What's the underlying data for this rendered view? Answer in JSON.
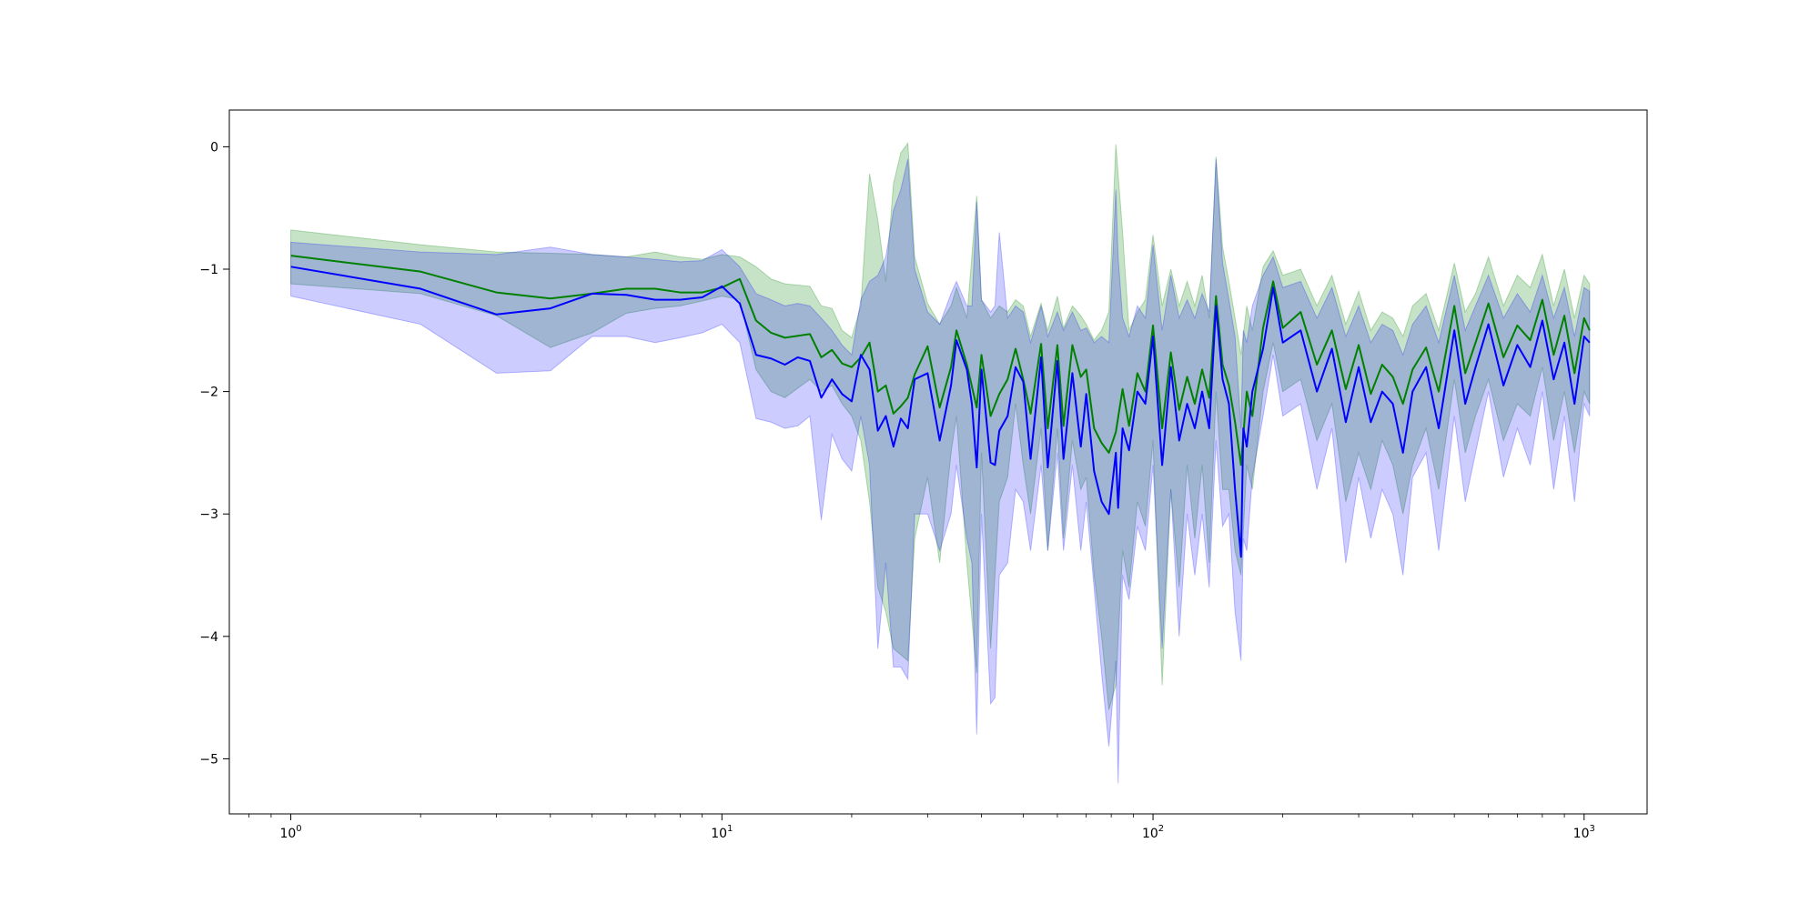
{
  "chart_data": {
    "type": "line",
    "title": "",
    "xlabel": "",
    "ylabel": "",
    "xscale": "log",
    "xlim": [
      0.72,
      1400
    ],
    "ylim": [
      -5.45,
      0.3
    ],
    "grid": false,
    "legend": "none",
    "x_ticks": [
      {
        "value": 1,
        "base": "10",
        "exp": "0"
      },
      {
        "value": 10,
        "base": "10",
        "exp": "1"
      },
      {
        "value": 100,
        "base": "10",
        "exp": "2"
      },
      {
        "value": 1000,
        "base": "10",
        "exp": "3"
      }
    ],
    "y_ticks": [
      {
        "value": 0,
        "label": "0"
      },
      {
        "value": -1,
        "label": "−1"
      },
      {
        "value": -2,
        "label": "−2"
      },
      {
        "value": -3,
        "label": "−3"
      },
      {
        "value": -4,
        "label": "−4"
      },
      {
        "value": -5,
        "label": "−5"
      }
    ],
    "series": [
      {
        "color": "#008000",
        "band_color": "#008000",
        "band_opacity": 0.22,
        "x": [
          1,
          2,
          3,
          4,
          5,
          6,
          7,
          8,
          9,
          10,
          11,
          12,
          13,
          14,
          16,
          17,
          18,
          19,
          20,
          21,
          22,
          23,
          24,
          25,
          26,
          27,
          28,
          30,
          32,
          34,
          35,
          37,
          39,
          40,
          42,
          44,
          46,
          48,
          50,
          52,
          55,
          57,
          60,
          62,
          65,
          68,
          70,
          73,
          76,
          79,
          82,
          85,
          88,
          92,
          96,
          100,
          105,
          110,
          115,
          120,
          125,
          130,
          135,
          140,
          145,
          150,
          155,
          160,
          165,
          170,
          180,
          190,
          200,
          220,
          240,
          260,
          280,
          300,
          320,
          340,
          360,
          380,
          400,
          430,
          460,
          500,
          530,
          560,
          600,
          650,
          700,
          750,
          800,
          850,
          900,
          950,
          1000,
          1030
        ],
        "y": [
          -0.89,
          -1.02,
          -1.19,
          -1.24,
          -1.2,
          -1.16,
          -1.16,
          -1.19,
          -1.19,
          -1.15,
          -1.08,
          -1.42,
          -1.52,
          -1.56,
          -1.53,
          -1.72,
          -1.66,
          -1.77,
          -1.8,
          -1.72,
          -1.6,
          -2.0,
          -1.95,
          -2.18,
          -2.12,
          -2.05,
          -1.86,
          -1.63,
          -2.13,
          -1.8,
          -1.5,
          -1.78,
          -2.13,
          -1.7,
          -2.2,
          -2.02,
          -1.9,
          -1.65,
          -1.9,
          -2.18,
          -1.61,
          -2.3,
          -1.62,
          -2.28,
          -1.62,
          -1.88,
          -1.82,
          -2.3,
          -2.42,
          -2.5,
          -2.33,
          -1.98,
          -2.28,
          -1.85,
          -2.0,
          -1.46,
          -2.3,
          -1.68,
          -2.15,
          -1.88,
          -2.1,
          -1.82,
          -2.05,
          -1.22,
          -1.78,
          -1.95,
          -2.25,
          -2.6,
          -2.0,
          -2.2,
          -1.48,
          -1.1,
          -1.48,
          -1.35,
          -1.78,
          -1.5,
          -1.98,
          -1.62,
          -2.02,
          -1.78,
          -1.88,
          -2.1,
          -1.82,
          -1.64,
          -2.0,
          -1.3,
          -1.85,
          -1.6,
          -1.28,
          -1.72,
          -1.46,
          -1.58,
          -1.25,
          -1.7,
          -1.38,
          -1.85,
          -1.4,
          -1.5
        ],
        "lower": [
          -1.12,
          -1.2,
          -1.38,
          -1.64,
          -1.52,
          -1.36,
          -1.32,
          -1.3,
          -1.26,
          -1.22,
          -1.25,
          -1.82,
          -2.0,
          -2.05,
          -1.9,
          -2.0,
          -1.95,
          -2.1,
          -2.2,
          -2.4,
          -2.9,
          -3.6,
          -3.8,
          -4.1,
          -4.15,
          -4.2,
          -3.2,
          -2.7,
          -3.4,
          -2.5,
          -2.2,
          -3.4,
          -4.3,
          -2.5,
          -4.1,
          -2.9,
          -2.7,
          -2.1,
          -2.6,
          -3.0,
          -2.3,
          -3.3,
          -2.3,
          -3.2,
          -2.4,
          -2.8,
          -2.7,
          -3.5,
          -4.0,
          -4.6,
          -4.4,
          -3.3,
          -3.6,
          -2.9,
          -3.1,
          -2.4,
          -4.4,
          -2.8,
          -3.6,
          -2.6,
          -3.2,
          -2.6,
          -3.4,
          -2.0,
          -2.8,
          -2.8,
          -3.3,
          -3.5,
          -2.6,
          -2.8,
          -2.0,
          -1.6,
          -2.0,
          -1.9,
          -2.4,
          -2.1,
          -2.9,
          -2.5,
          -2.8,
          -2.4,
          -2.6,
          -3.0,
          -2.6,
          -2.3,
          -2.8,
          -1.9,
          -2.5,
          -2.2,
          -1.9,
          -2.4,
          -2.1,
          -2.2,
          -1.8,
          -2.4,
          -2.0,
          -2.5,
          -2.0,
          -2.1
        ],
        "upper": [
          -0.68,
          -0.8,
          -0.86,
          -0.87,
          -0.88,
          -0.9,
          -0.86,
          -0.9,
          -0.92,
          -0.88,
          -0.9,
          -0.98,
          -1.08,
          -1.12,
          -1.14,
          -1.3,
          -1.32,
          -1.5,
          -1.56,
          -1.3,
          -0.22,
          -0.6,
          -1.1,
          -0.3,
          -0.05,
          0.03,
          -0.9,
          -1.28,
          -1.45,
          -1.3,
          -1.15,
          -1.4,
          -0.4,
          -1.25,
          -1.4,
          -1.3,
          -1.35,
          -1.25,
          -1.3,
          -1.55,
          -1.28,
          -1.5,
          -1.22,
          -1.48,
          -1.3,
          -1.38,
          -1.45,
          -1.58,
          -1.5,
          -1.35,
          0.02,
          -0.7,
          -1.5,
          -1.35,
          -1.25,
          -0.72,
          -1.3,
          -1.0,
          -1.3,
          -1.1,
          -1.3,
          -1.05,
          -1.4,
          -0.08,
          -0.82,
          -1.1,
          -1.4,
          -1.7,
          -1.3,
          -1.5,
          -0.98,
          -0.85,
          -1.05,
          -1.0,
          -1.3,
          -1.05,
          -1.45,
          -1.18,
          -1.5,
          -1.35,
          -1.4,
          -1.55,
          -1.3,
          -1.2,
          -1.5,
          -0.95,
          -1.35,
          -1.2,
          -0.9,
          -1.3,
          -1.05,
          -1.15,
          -0.88,
          -1.3,
          -1.0,
          -1.4,
          -1.05,
          -1.12
        ]
      },
      {
        "color": "#0000ff",
        "band_color": "#0000ff",
        "band_opacity": 0.2,
        "x": [
          1,
          2,
          3,
          4,
          5,
          6,
          7,
          8,
          9,
          10,
          11,
          12,
          13,
          14,
          15,
          16,
          17,
          18,
          19,
          20,
          21,
          22,
          23,
          24,
          25,
          26,
          27,
          28,
          30,
          32,
          34,
          35,
          37,
          38,
          39,
          40,
          42,
          43,
          44,
          46,
          48,
          50,
          52,
          55,
          57,
          60,
          62,
          65,
          68,
          70,
          73,
          76,
          79,
          82,
          83,
          85,
          88,
          92,
          96,
          100,
          105,
          110,
          115,
          120,
          125,
          130,
          135,
          140,
          145,
          150,
          155,
          160,
          162,
          165,
          170,
          180,
          190,
          200,
          220,
          240,
          260,
          280,
          300,
          320,
          340,
          360,
          380,
          400,
          430,
          460,
          500,
          530,
          560,
          600,
          650,
          700,
          750,
          800,
          850,
          900,
          950,
          1000,
          1030
        ],
        "y": [
          -0.98,
          -1.16,
          -1.37,
          -1.32,
          -1.2,
          -1.21,
          -1.25,
          -1.25,
          -1.23,
          -1.14,
          -1.28,
          -1.7,
          -1.73,
          -1.78,
          -1.72,
          -1.75,
          -2.05,
          -1.9,
          -2.02,
          -2.08,
          -1.7,
          -1.82,
          -2.32,
          -2.2,
          -2.45,
          -2.22,
          -2.3,
          -1.9,
          -1.85,
          -2.4,
          -1.95,
          -1.58,
          -1.82,
          -2.1,
          -2.62,
          -1.82,
          -2.58,
          -2.6,
          -2.32,
          -2.2,
          -1.8,
          -1.92,
          -2.55,
          -1.72,
          -2.62,
          -1.75,
          -2.55,
          -1.85,
          -2.45,
          -2.02,
          -2.65,
          -2.9,
          -3.0,
          -2.5,
          -2.95,
          -2.3,
          -2.48,
          -2.0,
          -2.1,
          -1.55,
          -2.6,
          -1.8,
          -2.4,
          -2.1,
          -2.3,
          -2.0,
          -2.3,
          -1.3,
          -1.9,
          -2.1,
          -2.8,
          -3.35,
          -2.3,
          -2.45,
          -2.0,
          -1.65,
          -1.15,
          -1.6,
          -1.5,
          -2.0,
          -1.65,
          -2.25,
          -1.8,
          -2.25,
          -2.0,
          -2.1,
          -2.5,
          -2.0,
          -1.8,
          -2.3,
          -1.5,
          -2.1,
          -1.8,
          -1.45,
          -1.95,
          -1.62,
          -1.8,
          -1.42,
          -1.9,
          -1.6,
          -2.1,
          -1.55,
          -1.6
        ],
        "lower": [
          -1.22,
          -1.45,
          -1.85,
          -1.83,
          -1.55,
          -1.55,
          -1.6,
          -1.56,
          -1.52,
          -1.45,
          -1.6,
          -2.22,
          -2.25,
          -2.3,
          -2.28,
          -2.2,
          -3.05,
          -2.35,
          -2.55,
          -2.65,
          -2.2,
          -2.6,
          -4.1,
          -3.4,
          -4.25,
          -4.25,
          -4.35,
          -3.0,
          -3.0,
          -3.3,
          -3.0,
          -2.6,
          -3.2,
          -3.4,
          -4.8,
          -3.0,
          -4.55,
          -4.5,
          -3.5,
          -3.4,
          -2.8,
          -2.9,
          -3.3,
          -2.6,
          -3.3,
          -2.5,
          -3.3,
          -2.6,
          -3.3,
          -2.9,
          -3.6,
          -4.3,
          -4.9,
          -4.2,
          -5.2,
          -3.5,
          -3.7,
          -3.1,
          -3.3,
          -2.6,
          -4.1,
          -2.8,
          -4.0,
          -3.0,
          -3.5,
          -3.0,
          -3.6,
          -2.4,
          -3.1,
          -3.0,
          -3.8,
          -4.2,
          -3.2,
          -3.3,
          -2.7,
          -2.2,
          -1.7,
          -2.2,
          -2.1,
          -2.8,
          -2.3,
          -3.4,
          -2.7,
          -3.2,
          -2.8,
          -3.0,
          -3.5,
          -2.7,
          -2.5,
          -3.3,
          -2.2,
          -2.9,
          -2.5,
          -2.0,
          -2.7,
          -2.3,
          -2.6,
          -2.0,
          -2.8,
          -2.2,
          -2.9,
          -2.1,
          -2.2
        ],
        "upper": [
          -0.78,
          -0.86,
          -0.88,
          -0.82,
          -0.88,
          -0.9,
          -0.92,
          -0.94,
          -0.93,
          -0.84,
          -0.98,
          -1.2,
          -1.25,
          -1.3,
          -1.28,
          -1.3,
          -1.4,
          -1.5,
          -1.62,
          -1.7,
          -1.25,
          -1.1,
          -1.05,
          -0.9,
          -0.52,
          -0.35,
          -0.1,
          -1.0,
          -1.35,
          -1.45,
          -1.2,
          -1.1,
          -1.3,
          -1.3,
          -0.45,
          -1.25,
          -1.35,
          -1.3,
          -0.7,
          -1.4,
          -1.3,
          -1.35,
          -1.6,
          -1.3,
          -1.55,
          -1.35,
          -1.5,
          -1.35,
          -1.5,
          -1.48,
          -1.6,
          -1.55,
          -1.6,
          -0.35,
          -0.9,
          -1.4,
          -1.55,
          -1.3,
          -1.4,
          -0.8,
          -1.5,
          -1.05,
          -1.4,
          -1.25,
          -1.4,
          -1.2,
          -1.35,
          -0.1,
          -0.95,
          -1.25,
          -1.55,
          -2.3,
          -1.5,
          -1.6,
          -1.3,
          -1.05,
          -0.9,
          -1.15,
          -1.1,
          -1.4,
          -1.15,
          -1.55,
          -1.3,
          -1.6,
          -1.45,
          -1.5,
          -1.7,
          -1.45,
          -1.3,
          -1.6,
          -1.05,
          -1.5,
          -1.3,
          -1.05,
          -1.4,
          -1.2,
          -1.35,
          -1.05,
          -1.4,
          -1.15,
          -1.55,
          -1.15,
          -1.18
        ]
      }
    ]
  }
}
